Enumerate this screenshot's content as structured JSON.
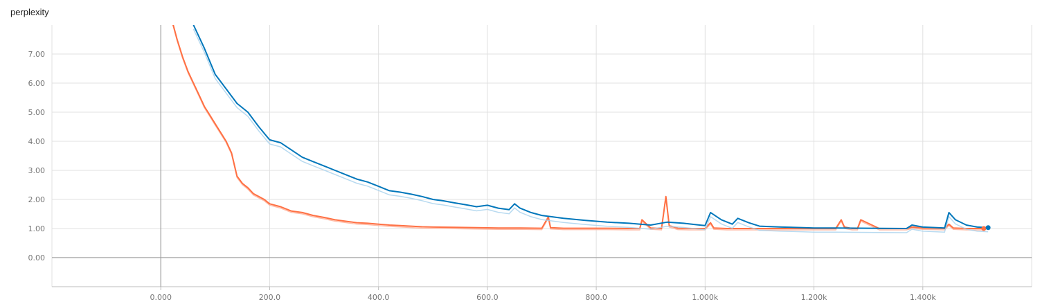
{
  "header": {
    "title": "perplexity"
  },
  "chart_data": {
    "type": "line",
    "title": "perplexity",
    "xlabel": "",
    "ylabel": "",
    "xlim": [
      -200,
      1600
    ],
    "ylim": [
      -1.0,
      8.0
    ],
    "grid": true,
    "xticks": [
      0,
      200,
      400,
      600,
      800,
      1000,
      1200,
      1400
    ],
    "xtick_labels": [
      "0.000",
      "200.0",
      "400.0",
      "600.0",
      "800.0",
      "1.000k",
      "1.200k",
      "1.400k"
    ],
    "yticks": [
      0,
      1,
      2,
      3,
      4,
      5,
      6,
      7
    ],
    "ytick_labels": [
      "0.00",
      "1.00",
      "2.00",
      "3.00",
      "4.00",
      "5.00",
      "6.00",
      "7.00"
    ],
    "colors": {
      "orange": "#ff7043",
      "orange_raw": "#ffab91",
      "blue": "#0077bb",
      "blue_raw": "#a6d1ec",
      "grid": "#e0e0e0",
      "zero_axis": "#9e9e9e"
    },
    "series": [
      {
        "color": "#ff7043",
        "raw_color": "#ffab91",
        "x": [
          20,
          30,
          40,
          50,
          60,
          70,
          80,
          90,
          100,
          110,
          120,
          130,
          140,
          150,
          160,
          170,
          180,
          190,
          200,
          220,
          240,
          260,
          280,
          300,
          320,
          340,
          360,
          380,
          400,
          420,
          440,
          460,
          480,
          500,
          540,
          580,
          620,
          660,
          700,
          712,
          716,
          740,
          780,
          820,
          860,
          880,
          884,
          900,
          920,
          928,
          934,
          950,
          970,
          1000,
          1010,
          1016,
          1040,
          1080,
          1120,
          1160,
          1200,
          1240,
          1250,
          1256,
          1270,
          1280,
          1286,
          1320,
          1370,
          1380,
          1400,
          1440,
          1448,
          1456,
          1480,
          1512
        ],
        "y": [
          8.2,
          7.5,
          6.9,
          6.4,
          6.0,
          5.6,
          5.2,
          4.9,
          4.6,
          4.3,
          4.0,
          3.6,
          2.8,
          2.55,
          2.4,
          2.2,
          2.1,
          2.0,
          1.85,
          1.75,
          1.6,
          1.55,
          1.45,
          1.38,
          1.3,
          1.25,
          1.2,
          1.18,
          1.15,
          1.12,
          1.1,
          1.08,
          1.06,
          1.05,
          1.04,
          1.03,
          1.02,
          1.02,
          1.01,
          1.4,
          1.03,
          1.01,
          1.01,
          1.01,
          1.0,
          1.0,
          1.3,
          1.02,
          1.0,
          2.1,
          1.1,
          1.01,
          1.0,
          1.0,
          1.2,
          1.02,
          1.0,
          1.0,
          1.0,
          1.0,
          1.0,
          1.0,
          1.3,
          1.05,
          1.0,
          1.0,
          1.3,
          1.0,
          1.0,
          1.05,
          1.02,
          1.0,
          1.15,
          1.02,
          1.0,
          1.0
        ]
      },
      {
        "color": "#0077bb",
        "raw_color": "#a6d1ec",
        "x": [
          60,
          80,
          100,
          120,
          140,
          160,
          180,
          200,
          220,
          240,
          260,
          280,
          300,
          320,
          340,
          360,
          380,
          400,
          420,
          440,
          460,
          480,
          500,
          520,
          540,
          560,
          580,
          600,
          620,
          640,
          650,
          660,
          680,
          700,
          740,
          780,
          820,
          860,
          900,
          930,
          960,
          990,
          1000,
          1010,
          1030,
          1050,
          1060,
          1080,
          1100,
          1140,
          1180,
          1200,
          1240,
          1300,
          1370,
          1380,
          1400,
          1440,
          1448,
          1460,
          1480,
          1500,
          1520
        ],
        "y": [
          8.0,
          7.2,
          6.3,
          5.8,
          5.3,
          5.0,
          4.5,
          4.05,
          3.95,
          3.7,
          3.45,
          3.3,
          3.15,
          3.0,
          2.85,
          2.7,
          2.6,
          2.45,
          2.3,
          2.25,
          2.18,
          2.1,
          2.0,
          1.95,
          1.88,
          1.82,
          1.75,
          1.8,
          1.7,
          1.65,
          1.85,
          1.7,
          1.55,
          1.45,
          1.35,
          1.28,
          1.22,
          1.18,
          1.12,
          1.22,
          1.18,
          1.12,
          1.1,
          1.55,
          1.3,
          1.15,
          1.35,
          1.2,
          1.08,
          1.05,
          1.03,
          1.02,
          1.02,
          1.01,
          1.0,
          1.12,
          1.05,
          1.02,
          1.55,
          1.3,
          1.12,
          1.05,
          1.03
        ]
      }
    ],
    "last_points": [
      {
        "x": 1512,
        "y": 1.0,
        "color": "#ff7043"
      },
      {
        "x": 1520,
        "y": 1.03,
        "color": "#0077bb"
      }
    ]
  }
}
